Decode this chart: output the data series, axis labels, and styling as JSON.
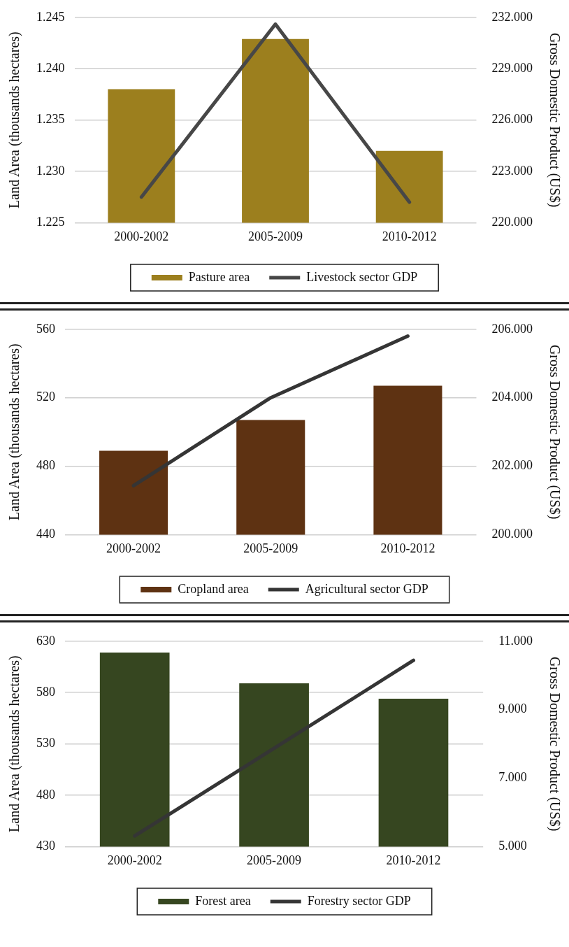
{
  "chart_data": [
    {
      "type": "bar",
      "categories": [
        "2000-2002",
        "2005-2009",
        "2010-2012"
      ],
      "ylabel": "Land Area (thousands hectares)",
      "y2label": "Gross Domestic Product (US$)",
      "ylim": [
        1225,
        1245
      ],
      "yticks": [
        {
          "value": 1225,
          "label": "1.225"
        },
        {
          "value": 1230,
          "label": "1.230"
        },
        {
          "value": 1235,
          "label": "1.235"
        },
        {
          "value": 1240,
          "label": "1.240"
        },
        {
          "value": 1245,
          "label": "1.245"
        }
      ],
      "y2lim": [
        220000,
        232000
      ],
      "y2ticks": [
        {
          "value": 220000,
          "label": "220.000"
        },
        {
          "value": 223000,
          "label": "223.000"
        },
        {
          "value": 226000,
          "label": "226.000"
        },
        {
          "value": 229000,
          "label": "229.000"
        },
        {
          "value": 232000,
          "label": "232.000"
        }
      ],
      "grid": "y",
      "legend": "bottom",
      "series": [
        {
          "name": "Pasture area",
          "color": "#9c7f1e",
          "values": [
            1238,
            1242.9,
            1232
          ]
        },
        {
          "name": "Livestock sector GDP",
          "type": "line",
          "axis": "y2",
          "color": "#474747",
          "values": [
            221500,
            231600,
            221200
          ]
        }
      ]
    },
    {
      "type": "bar",
      "categories": [
        "2000-2002",
        "2005-2009",
        "2010-2012"
      ],
      "ylabel": "Land Area (thousands hectares)",
      "y2label": "Gross Domestic Product (US$)",
      "ylim": [
        440,
        560
      ],
      "yticks": [
        440,
        480,
        520,
        560
      ],
      "y2lim": [
        200000,
        206000
      ],
      "y2ticks": [
        {
          "value": 200000,
          "label": "200.000"
        },
        {
          "value": 202000,
          "label": "202.000"
        },
        {
          "value": 204000,
          "label": "204.000"
        },
        {
          "value": 206000,
          "label": "206.000"
        }
      ],
      "grid": "y",
      "legend": "bottom",
      "series": [
        {
          "name": "Cropland area",
          "color": "#5e3212",
          "values": [
            489,
            507,
            527
          ]
        },
        {
          "name": "Agricultural sector GDP",
          "type": "line",
          "axis": "y2",
          "color": "#353535",
          "values": [
            201430,
            204000,
            205800
          ]
        }
      ]
    },
    {
      "type": "bar",
      "categories": [
        "2000-2002",
        "2005-2009",
        "2010-2012"
      ],
      "ylabel": "Land Area (thousands hectares)",
      "y2label": "Gross Domestic Product (US$)",
      "ylim": [
        430,
        630
      ],
      "yticks": [
        430,
        480,
        530,
        580,
        630
      ],
      "y2lim": [
        5000,
        11000
      ],
      "y2ticks": [
        {
          "value": 5000,
          "label": "5.000"
        },
        {
          "value": 7000,
          "label": "7.000"
        },
        {
          "value": 9000,
          "label": "9.000"
        },
        {
          "value": 11000,
          "label": "11.000"
        }
      ],
      "grid": "y",
      "legend": "bottom",
      "series": [
        {
          "name": "Forest area",
          "color": "#364620",
          "values": [
            619,
            589,
            574
          ]
        },
        {
          "name": "Forestry sector GDP",
          "type": "line",
          "axis": "y2",
          "color": "#353535",
          "values": [
            5310,
            7870,
            10440
          ]
        }
      ]
    }
  ]
}
